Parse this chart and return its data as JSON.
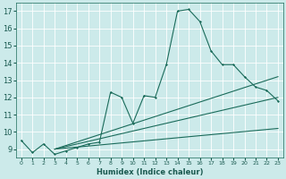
{
  "xlabel": "Humidex (Indice chaleur)",
  "bg_color": "#cceaea",
  "grid_color": "#ffffff",
  "line_color": "#1a6b5a",
  "xlim": [
    -0.5,
    23.5
  ],
  "ylim": [
    8.5,
    17.5
  ],
  "xticks": [
    0,
    1,
    2,
    3,
    4,
    5,
    6,
    7,
    8,
    9,
    10,
    11,
    12,
    13,
    14,
    15,
    16,
    17,
    18,
    19,
    20,
    21,
    22,
    23
  ],
  "yticks": [
    9,
    10,
    11,
    12,
    13,
    14,
    15,
    16,
    17
  ],
  "main_x": [
    0,
    1,
    2,
    3,
    4,
    5,
    6,
    7,
    8,
    9,
    10,
    11,
    12,
    13,
    14,
    15,
    16,
    17,
    18,
    19,
    20,
    21,
    22,
    23
  ],
  "main_y": [
    9.5,
    8.8,
    9.3,
    8.7,
    8.9,
    9.1,
    9.3,
    9.4,
    12.3,
    12.0,
    10.5,
    12.1,
    12.0,
    13.9,
    17.0,
    17.1,
    16.4,
    14.7,
    13.9,
    13.9,
    13.2,
    12.6,
    12.4,
    11.8
  ],
  "line1_x": [
    3,
    23
  ],
  "line1_y": [
    9.0,
    13.2
  ],
  "line2_x": [
    3,
    23
  ],
  "line2_y": [
    9.0,
    12.0
  ],
  "line3_x": [
    3,
    23
  ],
  "line3_y": [
    9.0,
    10.2
  ]
}
